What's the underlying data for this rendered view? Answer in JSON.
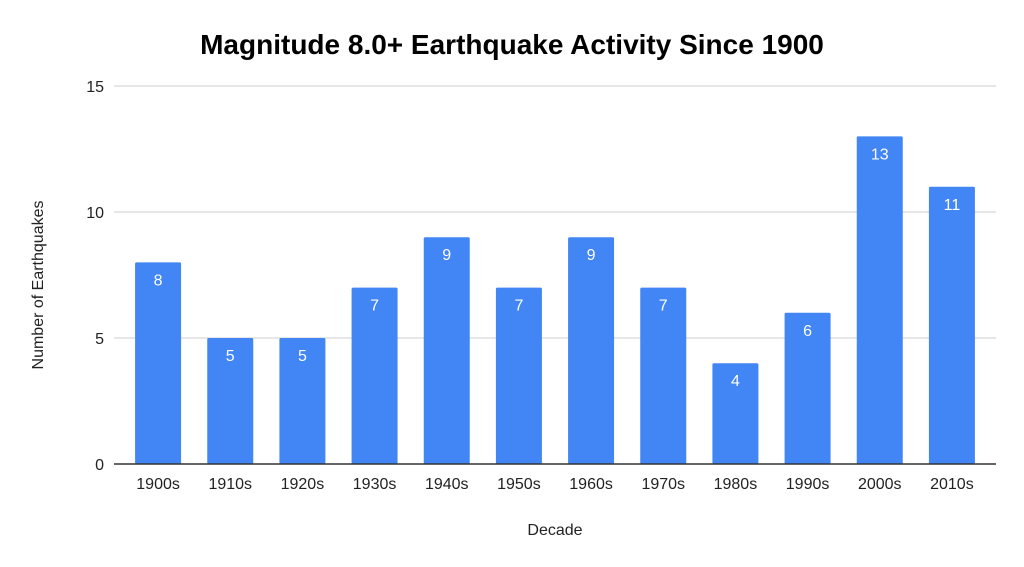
{
  "chart_data": {
    "type": "bar",
    "title": "Magnitude 8.0+ Earthquake Activity Since 1900",
    "xlabel": "Decade",
    "ylabel": "Number of Earthquakes",
    "categories": [
      "1900s",
      "1910s",
      "1920s",
      "1930s",
      "1940s",
      "1950s",
      "1960s",
      "1970s",
      "1980s",
      "1990s",
      "2000s",
      "2010s"
    ],
    "values": [
      8,
      5,
      5,
      7,
      9,
      7,
      9,
      7,
      4,
      6,
      13,
      11
    ],
    "ylim": [
      0,
      15
    ],
    "yticks": [
      0,
      5,
      10,
      15
    ],
    "grid": true,
    "legend": "none",
    "data_labels": true,
    "colors": {
      "bar": "#4285f4",
      "grid": "#cccccc",
      "baseline": "#333333",
      "data_label": "#ffffff"
    }
  }
}
